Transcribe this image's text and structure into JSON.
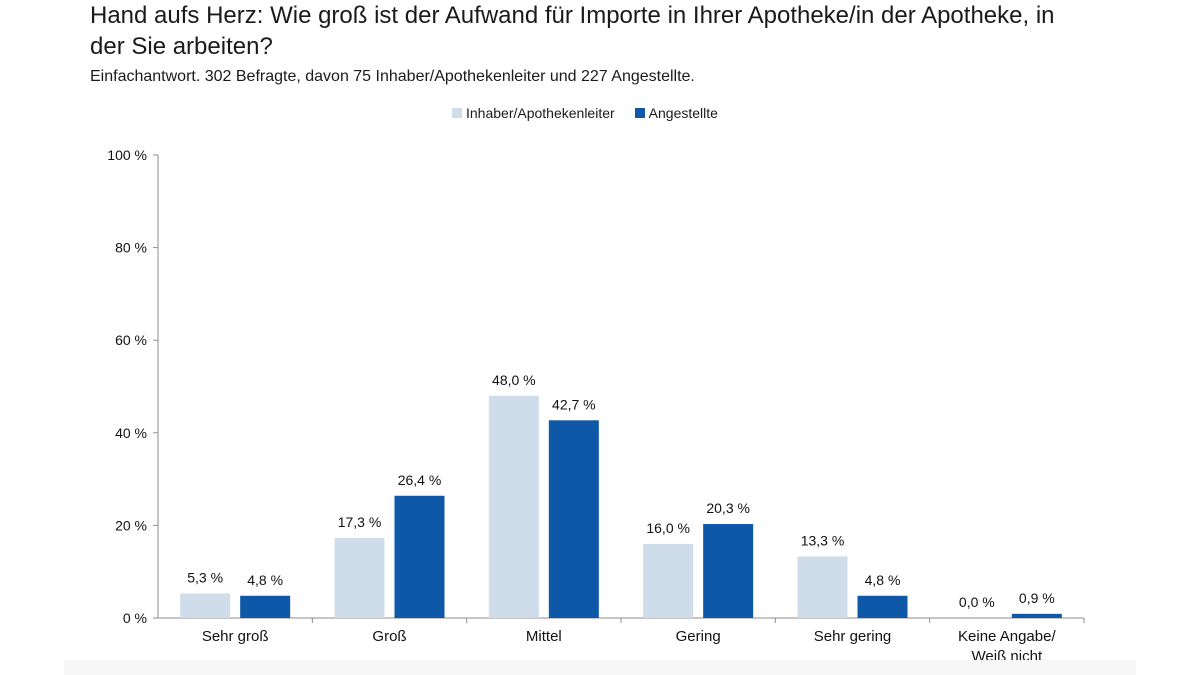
{
  "chart_data": {
    "type": "bar",
    "title": "Hand aufs Herz: Wie groß ist der Aufwand für Importe in Ihrer Apotheke/in der Apotheke, in der Sie arbeiten?",
    "subtitle": "Einfachantwort. 302 Befragte, davon 75 Inhaber/Apothekenleiter und 227 Angestellte.",
    "categories": [
      [
        "Sehr groß"
      ],
      [
        "Groß"
      ],
      [
        "Mittel"
      ],
      [
        "Gering"
      ],
      [
        "Sehr gering"
      ],
      [
        "Keine Angabe/",
        "Weiß nicht"
      ]
    ],
    "series": [
      {
        "name": "Inhaber/Apothekenleiter",
        "color": "#cfdcea",
        "values": [
          5.3,
          17.3,
          48.0,
          16.0,
          13.3,
          0.0
        ],
        "labels": [
          "5,3 %",
          "17,3 %",
          "48,0 %",
          "16,0 %",
          "13,3 %",
          "0,0 %"
        ]
      },
      {
        "name": "Angestellte",
        "color": "#0f58a8",
        "values": [
          4.8,
          26.4,
          42.7,
          20.3,
          4.8,
          0.9
        ],
        "labels": [
          "4,8 %",
          "26,4 %",
          "42,7 %",
          "20,3 %",
          "4,8 %",
          "0,9 %"
        ]
      }
    ],
    "ylim": [
      0,
      100
    ],
    "yticks": [
      {
        "value": 0,
        "label": "0 %"
      },
      {
        "value": 20,
        "label": "20 %"
      },
      {
        "value": 40,
        "label": "40 %"
      },
      {
        "value": 60,
        "label": "60 %"
      },
      {
        "value": 80,
        "label": "80 %"
      },
      {
        "value": 100,
        "label": "100 %"
      }
    ],
    "legend_position": "top-center",
    "grid": false
  }
}
